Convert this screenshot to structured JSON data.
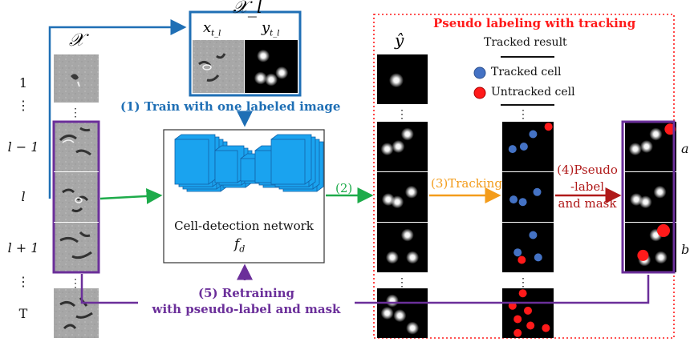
{
  "colors": {
    "blue": "#1f6fb5",
    "green": "#1dab4a",
    "orange": "#f39c1b",
    "darkred": "#b01a1a",
    "purple": "#6b2f9a",
    "red": "#ff1a1a",
    "tracked_fill": "#4472c4",
    "net_blue": "#1aa3ef",
    "net_dark": "#1362a8"
  },
  "labels": {
    "xl_title": "𝒳_l",
    "x_title": "𝒳",
    "xtl": "x",
    "xtl_sub": "t_l",
    "ytl": "y",
    "ytl_sub": "t_l",
    "yhat": "ŷ",
    "step1": "(1) Train with one labeled image",
    "step2": "(2)",
    "step3": "(3)Tracking",
    "step4_l1": "(4)Pseudo",
    "step4_l2": "-label",
    "step4_l3": "and mask",
    "step5_l1": "(5) Retraining",
    "step5_l2": "with pseudo-label and mask",
    "network": "Cell-detection network",
    "fd": "f",
    "fd_sub": "d",
    "pseudo_title": "Pseudo labeling with tracking",
    "tracked_result": "Tracked result",
    "legend_tracked": "Tracked cell",
    "legend_untracked": "Untracked cell",
    "marker_a": "a",
    "marker_b": "b"
  },
  "frame_labels": [
    "1",
    "⋮",
    "l − 1",
    "l",
    "l + 1",
    "⋮",
    "T"
  ],
  "cell_positions": {
    "yhat_top": [
      [
        0.38,
        0.52
      ]
    ],
    "yhat_r1": [
      [
        0.2,
        0.55
      ],
      [
        0.42,
        0.5
      ],
      [
        0.6,
        0.25
      ]
    ],
    "yhat_r2": [
      [
        0.22,
        0.55
      ],
      [
        0.4,
        0.6
      ],
      [
        0.68,
        0.4
      ]
    ],
    "yhat_r3": [
      [
        0.6,
        0.25
      ],
      [
        0.3,
        0.7
      ],
      [
        0.7,
        0.7
      ]
    ],
    "yhat_r4": [
      [
        0.3,
        0.25
      ],
      [
        0.2,
        0.5
      ],
      [
        0.45,
        0.55
      ],
      [
        0.7,
        0.8
      ]
    ],
    "track_r1_blue": [
      [
        0.2,
        0.55
      ],
      [
        0.42,
        0.5
      ],
      [
        0.6,
        0.25
      ]
    ],
    "track_r1_red": [
      [
        0.9,
        0.1
      ]
    ],
    "track_r2_blue": [
      [
        0.22,
        0.55
      ],
      [
        0.4,
        0.6
      ],
      [
        0.68,
        0.4
      ]
    ],
    "track_r3_blue": [
      [
        0.6,
        0.25
      ],
      [
        0.3,
        0.6
      ],
      [
        0.7,
        0.7
      ]
    ],
    "track_r3_red": [
      [
        0.38,
        0.75
      ]
    ],
    "track_r4_red": [
      [
        0.4,
        0.1
      ],
      [
        0.2,
        0.35
      ],
      [
        0.5,
        0.45
      ],
      [
        0.3,
        0.62
      ],
      [
        0.55,
        0.75
      ],
      [
        0.3,
        0.9
      ],
      [
        0.85,
        0.8
      ]
    ],
    "out_r1": [
      [
        0.2,
        0.55
      ],
      [
        0.42,
        0.5
      ],
      [
        0.6,
        0.25
      ],
      [
        0.9,
        0.1
      ]
    ],
    "out_r2": [
      [
        0.22,
        0.55
      ],
      [
        0.4,
        0.6
      ],
      [
        0.68,
        0.4
      ]
    ],
    "out_r3": [
      [
        0.6,
        0.25
      ],
      [
        0.38,
        0.75
      ],
      [
        0.7,
        0.7
      ]
    ]
  }
}
